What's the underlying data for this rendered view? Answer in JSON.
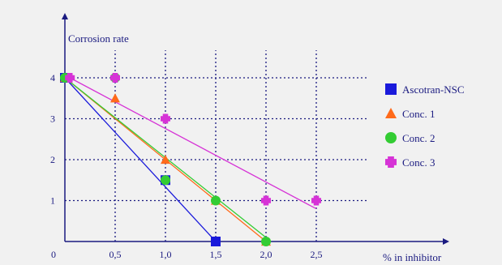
{
  "chart_data": {
    "type": "line",
    "ylabel": "Corrosion rate",
    "xlabel": "% in inhibitor",
    "origin_label": "0",
    "x_ticks": [
      {
        "value": 0.5,
        "label": "0,5"
      },
      {
        "value": 1.0,
        "label": "1,0"
      },
      {
        "value": 1.5,
        "label": "1,5"
      },
      {
        "value": 2.0,
        "label": "2,0"
      },
      {
        "value": 2.5,
        "label": "2,5"
      }
    ],
    "y_ticks": [
      {
        "value": 1,
        "label": "1"
      },
      {
        "value": 2,
        "label": "2"
      },
      {
        "value": 3,
        "label": "3"
      },
      {
        "value": 4,
        "label": "4"
      }
    ],
    "xlim": [
      0,
      3.0
    ],
    "ylim": [
      0,
      5.0
    ],
    "grid": true,
    "legend_position": "right",
    "series": [
      {
        "name": "Ascotran-NSC",
        "color": "#1a1adb",
        "marker": "square",
        "points": [
          [
            0,
            4
          ],
          [
            1.0,
            1.5
          ],
          [
            1.5,
            0
          ]
        ],
        "line": [
          [
            0,
            4
          ],
          [
            1.5,
            0
          ]
        ]
      },
      {
        "name": "Conc. 1",
        "color": "#ff6a1a",
        "marker": "triangle",
        "points": [
          [
            0,
            4
          ],
          [
            0.5,
            3.5
          ],
          [
            1.0,
            2
          ],
          [
            1.5,
            1
          ],
          [
            2.0,
            0
          ]
        ],
        "line": [
          [
            0,
            4
          ],
          [
            2.0,
            0
          ]
        ]
      },
      {
        "name": "Conc. 2",
        "color": "#33cc33",
        "marker": "circle",
        "points": [
          [
            0,
            4
          ],
          [
            0.5,
            4
          ],
          [
            1.0,
            1.5
          ],
          [
            1.5,
            1
          ],
          [
            2.0,
            0
          ]
        ],
        "line": [
          [
            0,
            4
          ],
          [
            2.05,
            0
          ]
        ]
      },
      {
        "name": "Conc. 3",
        "color": "#d633d6",
        "marker": "cross",
        "points": [
          [
            0.05,
            4
          ],
          [
            0.5,
            4
          ],
          [
            1.0,
            3
          ],
          [
            2.0,
            1
          ],
          [
            2.5,
            1
          ]
        ],
        "line": [
          [
            0.05,
            4
          ],
          [
            2.5,
            0.8
          ]
        ]
      }
    ]
  }
}
